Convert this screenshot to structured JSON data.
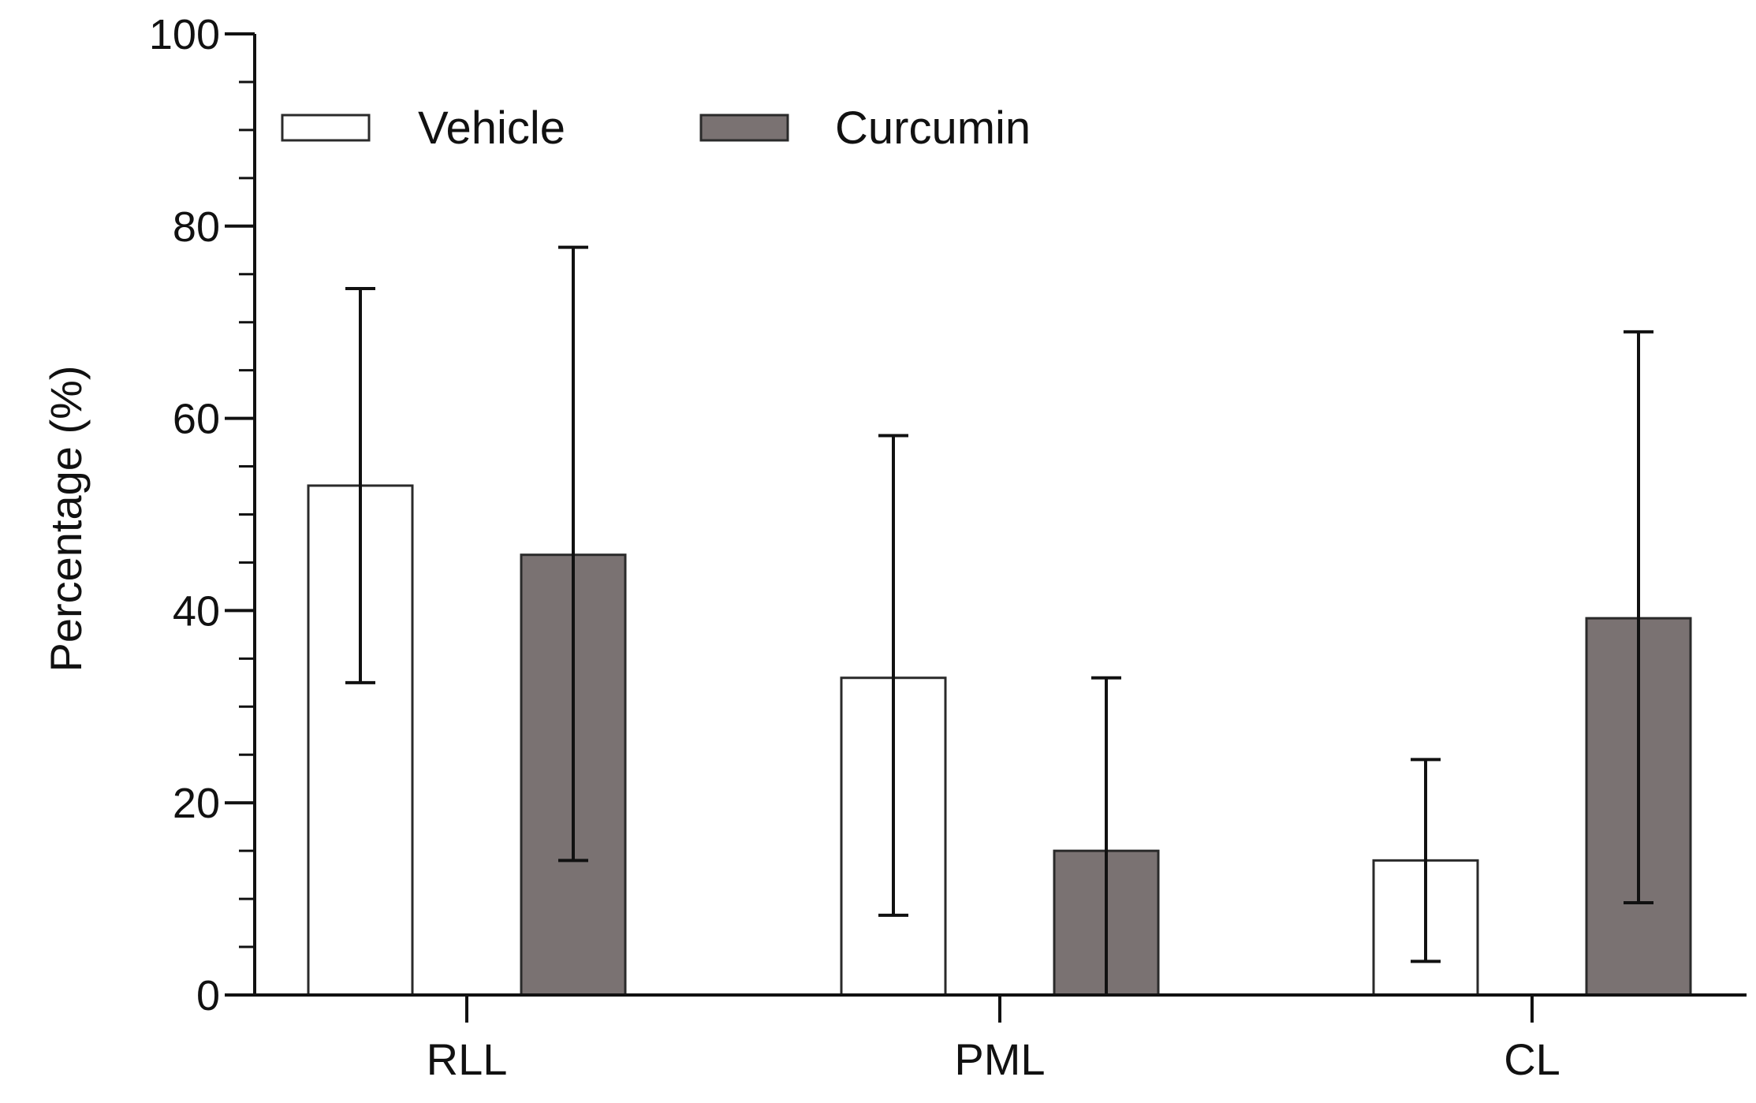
{
  "chart_data": {
    "type": "bar",
    "title": "",
    "xlabel": "",
    "ylabel": "Percentage (%)",
    "ylim": [
      0,
      100
    ],
    "yticks": [
      0,
      20,
      40,
      60,
      80,
      100
    ],
    "yticks_labels": [
      "0",
      "20",
      "40",
      "60",
      "80",
      "100"
    ],
    "grid": false,
    "legend_position": "top-left",
    "categories": [
      "RLL",
      "PML",
      "CL"
    ],
    "series": [
      {
        "name": "Vehicle",
        "color": "#ffffff",
        "values": [
          53,
          33,
          14
        ],
        "error_low": [
          32.5,
          8.3,
          3.5
        ],
        "error_high": [
          73.5,
          58.2,
          24.5
        ]
      },
      {
        "name": "Curcumin",
        "color": "#7a7272",
        "values": [
          45.8,
          15,
          39.2
        ],
        "error_low": [
          14,
          0,
          9.6
        ],
        "error_high": [
          77.8,
          33,
          69
        ]
      }
    ]
  }
}
